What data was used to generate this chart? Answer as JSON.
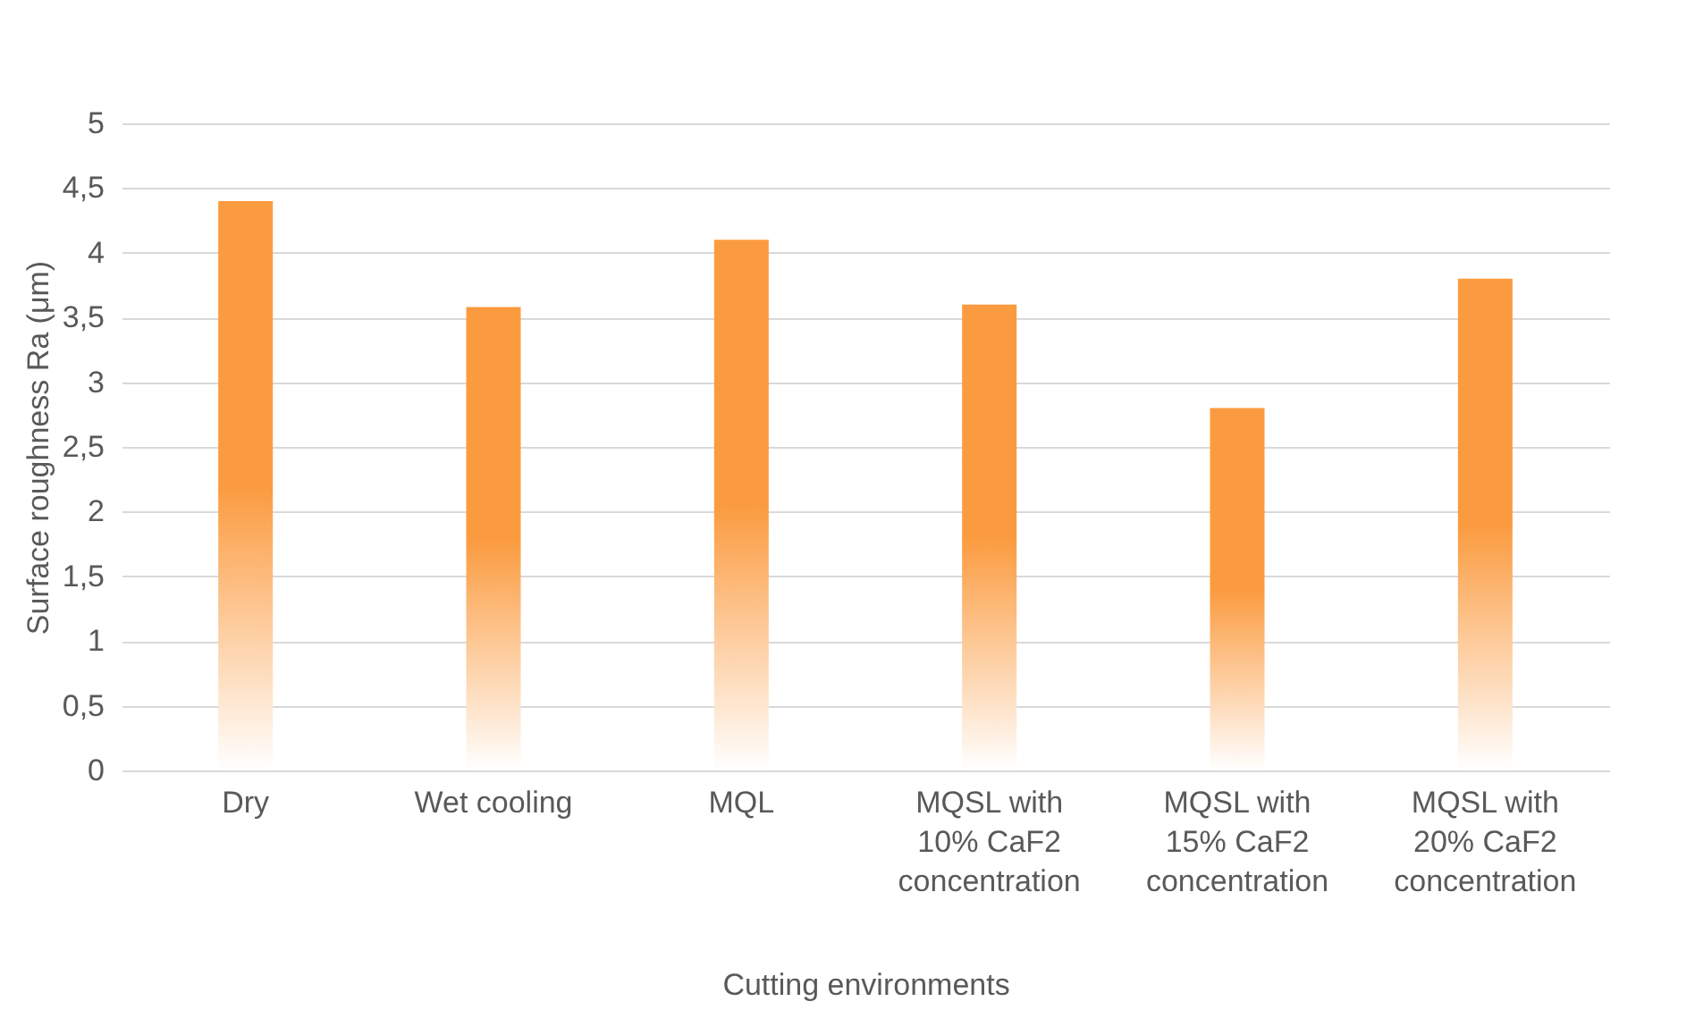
{
  "chart_data": {
    "type": "bar",
    "xlabel": "Cutting environments",
    "ylabel": "Surface roughness Ra (μm)",
    "categories": [
      "Dry",
      "Wet cooling",
      "MQL",
      "MQSL with 10% CaF2 concentration",
      "MQSL with 15% CaF2 concentration",
      "MQSL with 20% CaF2 concentration"
    ],
    "values": [
      4.4,
      3.58,
      4.1,
      3.6,
      2.8,
      3.8
    ],
    "color": "#fb9b3f",
    "ylim": [
      0,
      5
    ],
    "yticks": [
      0,
      {
        "value": 0.5,
        "label": "0,5"
      },
      1,
      {
        "value": 1.5,
        "label": "1,5"
      },
      2,
      {
        "value": 2.5,
        "label": "2,5"
      },
      3,
      {
        "value": 3.5,
        "label": "3,5"
      },
      4,
      {
        "value": 4.5,
        "label": "4,5"
      },
      5
    ],
    "grid": "y"
  }
}
